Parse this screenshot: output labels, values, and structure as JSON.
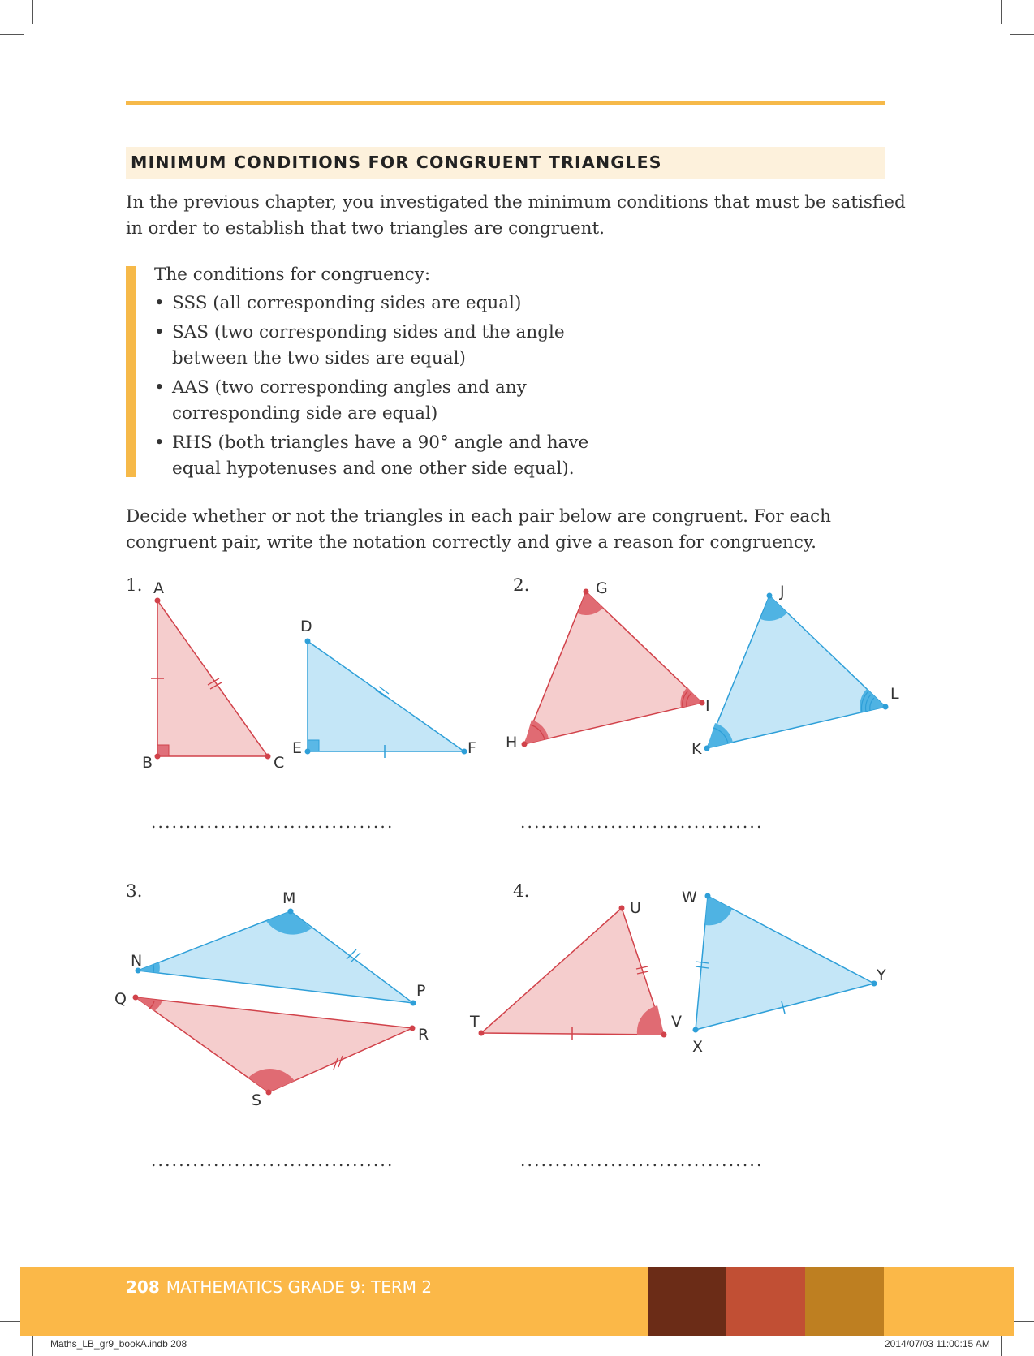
{
  "heading": "MINIMUM CONDITIONS FOR CONGRUENT TRIANGLES",
  "intro": {
    "line1": "In the previous chapter, you investigated the minimum conditions that must be satisfied",
    "line2": "in order to establish that two triangles are congruent."
  },
  "conditions": {
    "title": "The conditions for congruency:",
    "items": [
      "SSS (all corresponding sides are equal)",
      "SAS (two corresponding sides and the angle\nbetween the two sides are equal)",
      "AAS (two corresponding angles and any\ncorresponding side are equal)",
      "RHS (both triangles have a 90° angle and have\nequal hypotenuses and one other side equal)."
    ]
  },
  "instruction": {
    "line1": "Decide whether or not the triangles in each pair below are congruent. For each",
    "line2": "congruent pair, write the notation correctly and give a reason for congruency."
  },
  "problems": [
    {
      "number": "1.",
      "labels": [
        "A",
        "B",
        "C",
        "D",
        "E",
        "F"
      ]
    },
    {
      "number": "2.",
      "labels": [
        "G",
        "H",
        "I",
        "J",
        "K",
        "L"
      ]
    },
    {
      "number": "3.",
      "labels": [
        "M",
        "N",
        "P",
        "Q",
        "R",
        "S"
      ]
    },
    {
      "number": "4.",
      "labels": [
        "U",
        "T",
        "V",
        "W",
        "X",
        "Y"
      ]
    }
  ],
  "answer_line": "...................................",
  "footer": {
    "page_number": "208",
    "title": "MATHEMATICS GRADE 9: TERM 2",
    "swatch_colors": [
      "#6b2c17",
      "#c14f34",
      "#be7f21"
    ]
  },
  "slug": {
    "left": "Maths_LB_gr9_bookA.indb   208",
    "right": "2014/07/03   11:00:15 AM"
  },
  "colors": {
    "accent": "#f6b949",
    "red_fill": "#f5cdcd",
    "red_stroke": "#d1424a",
    "blue_fill": "#c4e6f7",
    "blue_stroke": "#2e9fd8"
  }
}
